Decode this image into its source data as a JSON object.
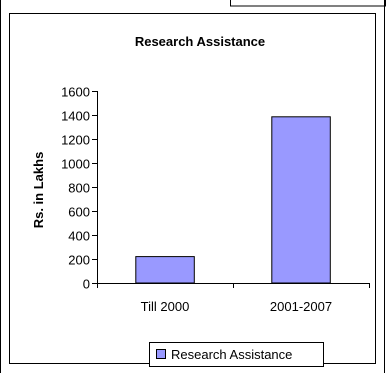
{
  "chart_data": {
    "type": "bar",
    "title": "Research Assistance",
    "xlabel": "",
    "ylabel": "Rs. in Lakhs",
    "categories": [
      "Till 2000",
      "2001-2007"
    ],
    "series": [
      {
        "name": "Research Assistance",
        "values": [
          220,
          1385
        ]
      }
    ],
    "ylim": [
      0,
      1600
    ],
    "yticks": [
      "0",
      "200",
      "400",
      "600",
      "800",
      "1000",
      "1200",
      "1400",
      "1600"
    ],
    "grid": false,
    "legend": "bottom",
    "colors": {
      "bar": "#9999ff",
      "bar_stroke": "#000000",
      "frame": "#000000"
    }
  }
}
